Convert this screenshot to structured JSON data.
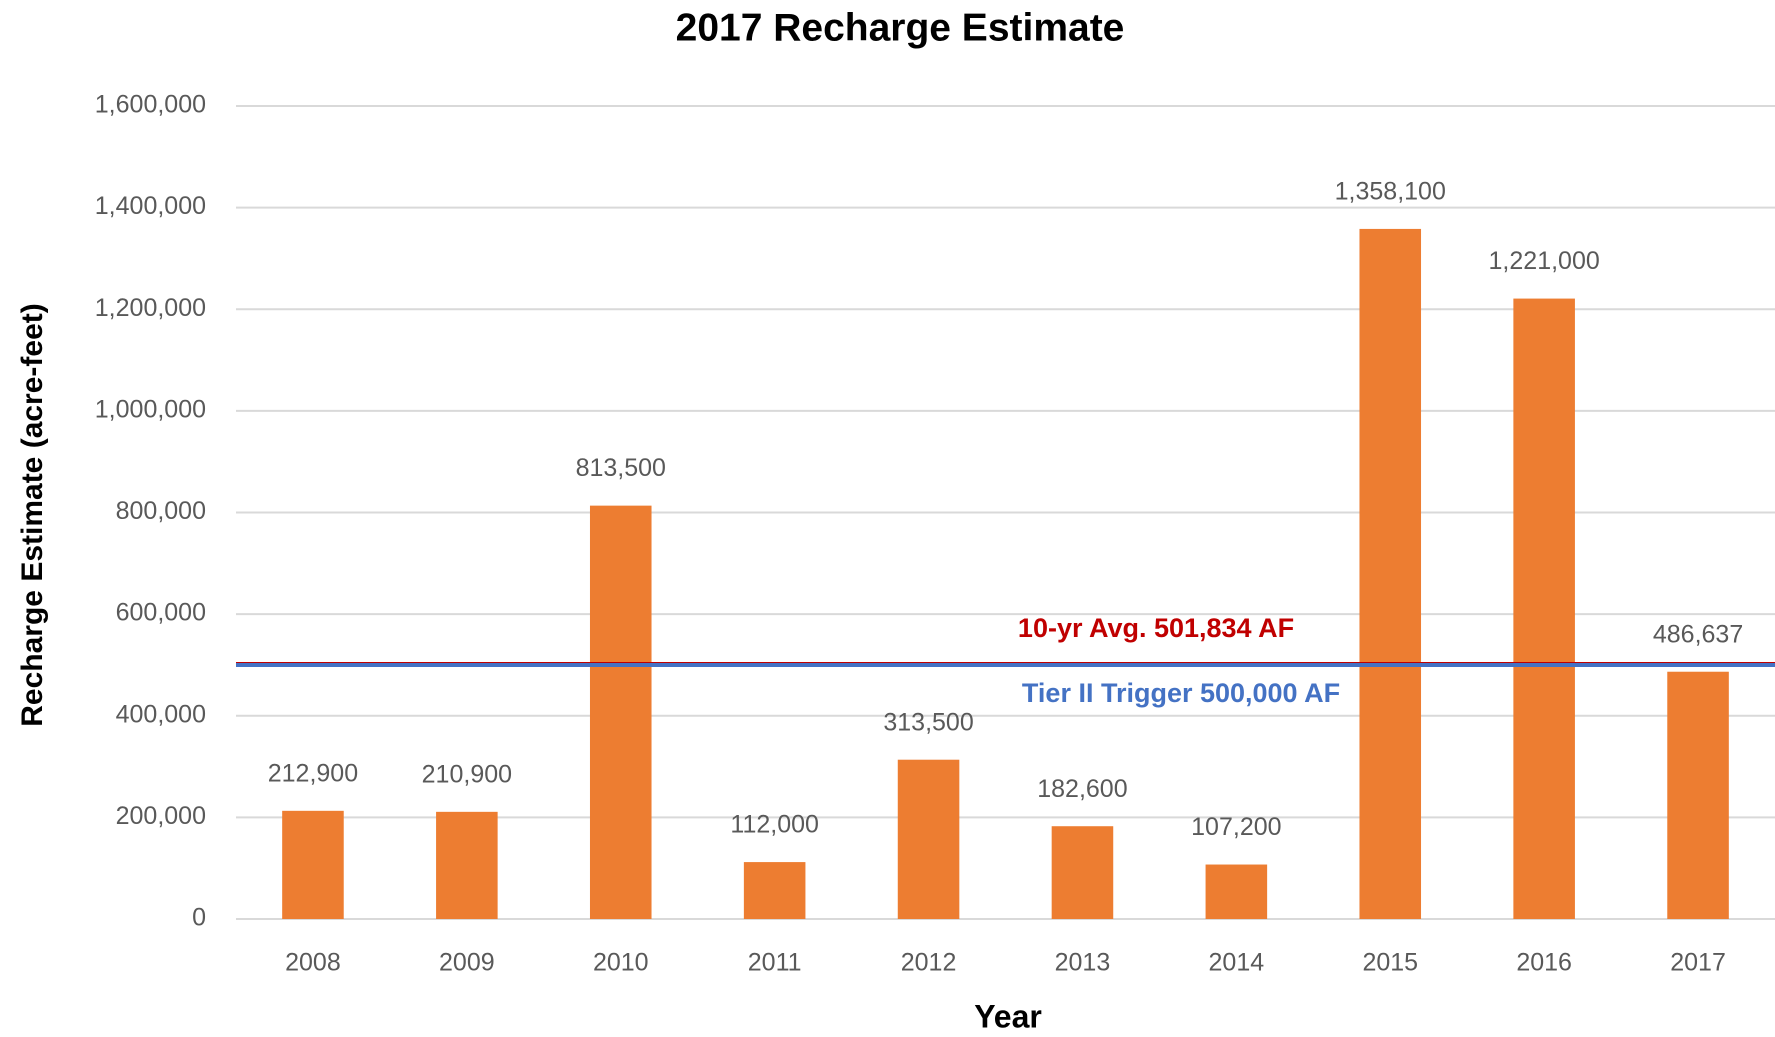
{
  "chart_data": {
    "type": "bar",
    "title": "2017 Recharge Estimate",
    "x_label": "Year",
    "y_label": "Recharge Estimate (acre-feet)",
    "categories": [
      "2008",
      "2009",
      "2010",
      "2011",
      "2012",
      "2013",
      "2014",
      "2015",
      "2016",
      "2017"
    ],
    "values": [
      212900,
      210900,
      813500,
      112000,
      313500,
      182600,
      107200,
      1358100,
      1221000,
      486637
    ],
    "value_labels": [
      "212,900",
      "210,900",
      "813,500",
      "112,000",
      "313,500",
      "182,600",
      "107,200",
      "1,358,100",
      "1,221,000",
      "486,637"
    ],
    "color": "#ed7d31",
    "ylim": [
      0,
      1600000
    ],
    "yticks": [
      0,
      {
        "value": 200000,
        "label": "200,000"
      },
      {
        "value": 400000,
        "label": "400,000"
      },
      {
        "value": 600000,
        "label": "600,000"
      },
      {
        "value": 800000,
        "label": "800,000"
      },
      {
        "value": 1000000,
        "label": "1,000,000"
      },
      {
        "value": 1200000,
        "label": "1,200,000"
      },
      {
        "value": 1400000,
        "label": "1,400,000"
      },
      {
        "value": 1600000,
        "label": "1,600,000"
      }
    ],
    "grid": true,
    "reference_lines": [
      {
        "label": "10-yr Avg. 501,834 AF",
        "value": 501834,
        "color": "#c00000"
      },
      {
        "label": "Tier II Trigger 500,000 AF",
        "value": 500000,
        "color": "#4472c4"
      }
    ]
  }
}
